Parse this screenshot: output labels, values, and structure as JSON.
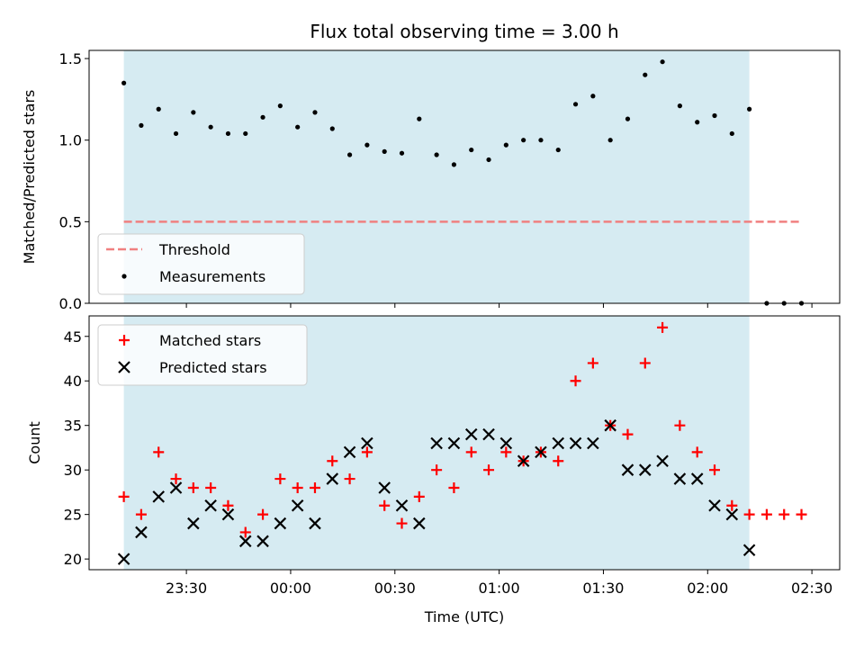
{
  "colors": {
    "span": "#add8e6",
    "threshold": "#f08080",
    "matched": "#ff0000",
    "predicted": "#000000",
    "measurement": "#000000"
  },
  "chart_data": [
    {
      "type": "scatter",
      "title": "Flux total observing time = 3.00 h",
      "xlabel": "",
      "ylabel": "Matched/Predicted stars",
      "xlim": [
        "23:02",
        "02:38"
      ],
      "ylim": [
        0,
        1.55
      ],
      "yticks": [
        0.0,
        0.5,
        1.0,
        1.5
      ],
      "ytick_labels": [
        "0.0",
        "0.5",
        "1.0",
        "1.5"
      ],
      "observing_span": [
        "23:12",
        "02:12"
      ],
      "legend": {
        "position": "lower-left",
        "entries": [
          "Threshold",
          "Measurements"
        ]
      },
      "threshold": {
        "name": "Threshold",
        "y": 0.5,
        "x_range": [
          "23:12",
          "02:27"
        ]
      },
      "series": [
        {
          "name": "Measurements",
          "x": [
            "23:12",
            "23:17",
            "23:22",
            "23:27",
            "23:32",
            "23:37",
            "23:42",
            "23:47",
            "23:52",
            "23:57",
            "00:02",
            "00:07",
            "00:12",
            "00:17",
            "00:22",
            "00:27",
            "00:32",
            "00:37",
            "00:42",
            "00:47",
            "00:52",
            "00:57",
            "01:02",
            "01:07",
            "01:12",
            "01:17",
            "01:22",
            "01:27",
            "01:32",
            "01:37",
            "01:42",
            "01:47",
            "01:52",
            "01:57",
            "02:02",
            "02:07",
            "02:12",
            "02:17",
            "02:22",
            "02:27"
          ],
          "y": [
            1.35,
            1.09,
            1.19,
            1.04,
            1.17,
            1.08,
            1.04,
            1.04,
            1.14,
            1.21,
            1.08,
            1.17,
            1.07,
            0.91,
            0.97,
            0.93,
            0.92,
            1.13,
            0.91,
            0.85,
            0.94,
            0.88,
            0.97,
            1.0,
            1.0,
            0.94,
            1.22,
            1.27,
            1.0,
            1.13,
            1.4,
            1.48,
            1.21,
            1.11,
            1.15,
            1.04,
            1.19,
            0.0,
            0.0,
            0.0
          ]
        }
      ]
    },
    {
      "type": "scatter",
      "title": "",
      "xlabel": "Time (UTC)",
      "ylabel": "Count",
      "xlim": [
        "23:02",
        "02:38"
      ],
      "ylim": [
        18.8,
        47.3
      ],
      "yticks": [
        20,
        25,
        30,
        35,
        40,
        45
      ],
      "ytick_labels": [
        "20",
        "25",
        "30",
        "35",
        "40",
        "45"
      ],
      "xticks": [
        "23:30",
        "00:00",
        "00:30",
        "01:00",
        "01:30",
        "02:00",
        "02:30"
      ],
      "observing_span": [
        "23:12",
        "02:12"
      ],
      "legend": {
        "position": "upper-left",
        "entries": [
          "Matched stars",
          "Predicted stars"
        ]
      },
      "series": [
        {
          "name": "Matched stars",
          "marker": "plus",
          "x": [
            "23:12",
            "23:17",
            "23:22",
            "23:27",
            "23:32",
            "23:37",
            "23:42",
            "23:47",
            "23:52",
            "23:57",
            "00:02",
            "00:07",
            "00:12",
            "00:17",
            "00:22",
            "00:27",
            "00:32",
            "00:37",
            "00:42",
            "00:47",
            "00:52",
            "00:57",
            "01:02",
            "01:07",
            "01:12",
            "01:17",
            "01:22",
            "01:27",
            "01:32",
            "01:37",
            "01:42",
            "01:47",
            "01:52",
            "01:57",
            "02:02",
            "02:07",
            "02:12",
            "02:17",
            "02:22",
            "02:27"
          ],
          "y": [
            27,
            25,
            32,
            29,
            28,
            28,
            26,
            23,
            25,
            29,
            28,
            28,
            31,
            29,
            32,
            26,
            24,
            27,
            30,
            28,
            32,
            30,
            32,
            31,
            32,
            31,
            40,
            42,
            35,
            34,
            42,
            46,
            35,
            32,
            30,
            26,
            25,
            25,
            25,
            25
          ]
        },
        {
          "name": "Predicted stars",
          "marker": "x",
          "x": [
            "23:12",
            "23:17",
            "23:22",
            "23:27",
            "23:32",
            "23:37",
            "23:42",
            "23:47",
            "23:52",
            "23:57",
            "00:02",
            "00:07",
            "00:12",
            "00:17",
            "00:22",
            "00:27",
            "00:32",
            "00:37",
            "00:42",
            "00:47",
            "00:52",
            "00:57",
            "01:02",
            "01:07",
            "01:12",
            "01:17",
            "01:22",
            "01:27",
            "01:32",
            "01:37",
            "01:42",
            "01:47",
            "01:52",
            "01:57",
            "02:02",
            "02:07",
            "02:12"
          ],
          "y": [
            20,
            23,
            27,
            28,
            24,
            26,
            25,
            22,
            22,
            24,
            26,
            24,
            29,
            32,
            33,
            28,
            26,
            24,
            33,
            33,
            34,
            34,
            33,
            31,
            32,
            33,
            33,
            33,
            35,
            30,
            30,
            31,
            29,
            29,
            26,
            25,
            21
          ]
        }
      ]
    }
  ]
}
